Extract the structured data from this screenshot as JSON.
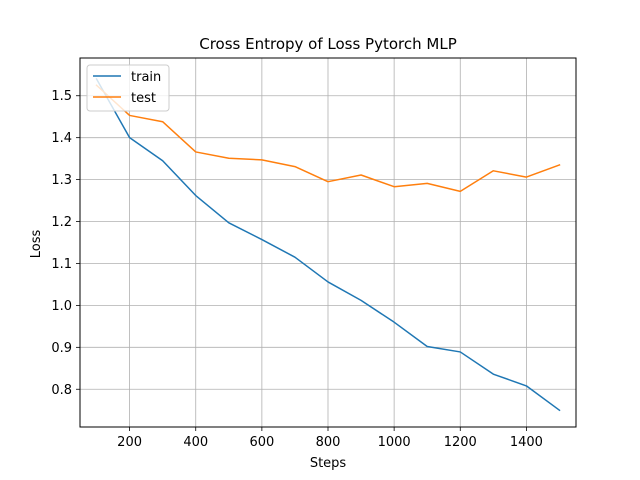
{
  "chart_data": {
    "type": "line",
    "title": "Cross Entropy of Loss Pytorch MLP",
    "xlabel": "Steps",
    "ylabel": "Loss",
    "xlim": [
      50,
      1550
    ],
    "ylim": [
      0.71,
      1.59
    ],
    "xticks": [
      200,
      400,
      600,
      800,
      1000,
      1200,
      1400
    ],
    "yticks": [
      0.8,
      0.9,
      1.0,
      1.1,
      1.2,
      1.3,
      1.4,
      1.5
    ],
    "grid": true,
    "legend_position": "top-left",
    "series": [
      {
        "name": "train",
        "color": "#1f77b4",
        "x": [
          100,
          200,
          300,
          400,
          500,
          600,
          700,
          800,
          900,
          1000,
          1100,
          1200,
          1300,
          1400,
          1500
        ],
        "y": [
          1.54,
          1.4,
          1.345,
          1.262,
          1.197,
          1.157,
          1.115,
          1.056,
          1.012,
          0.96,
          0.902,
          0.889,
          0.836,
          0.808,
          0.75
        ]
      },
      {
        "name": "test",
        "color": "#ff7f0e",
        "x": [
          100,
          200,
          300,
          400,
          500,
          600,
          700,
          800,
          900,
          1000,
          1100,
          1200,
          1300,
          1400,
          1500
        ],
        "y": [
          1.525,
          1.453,
          1.438,
          1.366,
          1.351,
          1.347,
          1.331,
          1.295,
          1.311,
          1.283,
          1.291,
          1.272,
          1.321,
          1.306,
          1.335
        ]
      }
    ]
  }
}
